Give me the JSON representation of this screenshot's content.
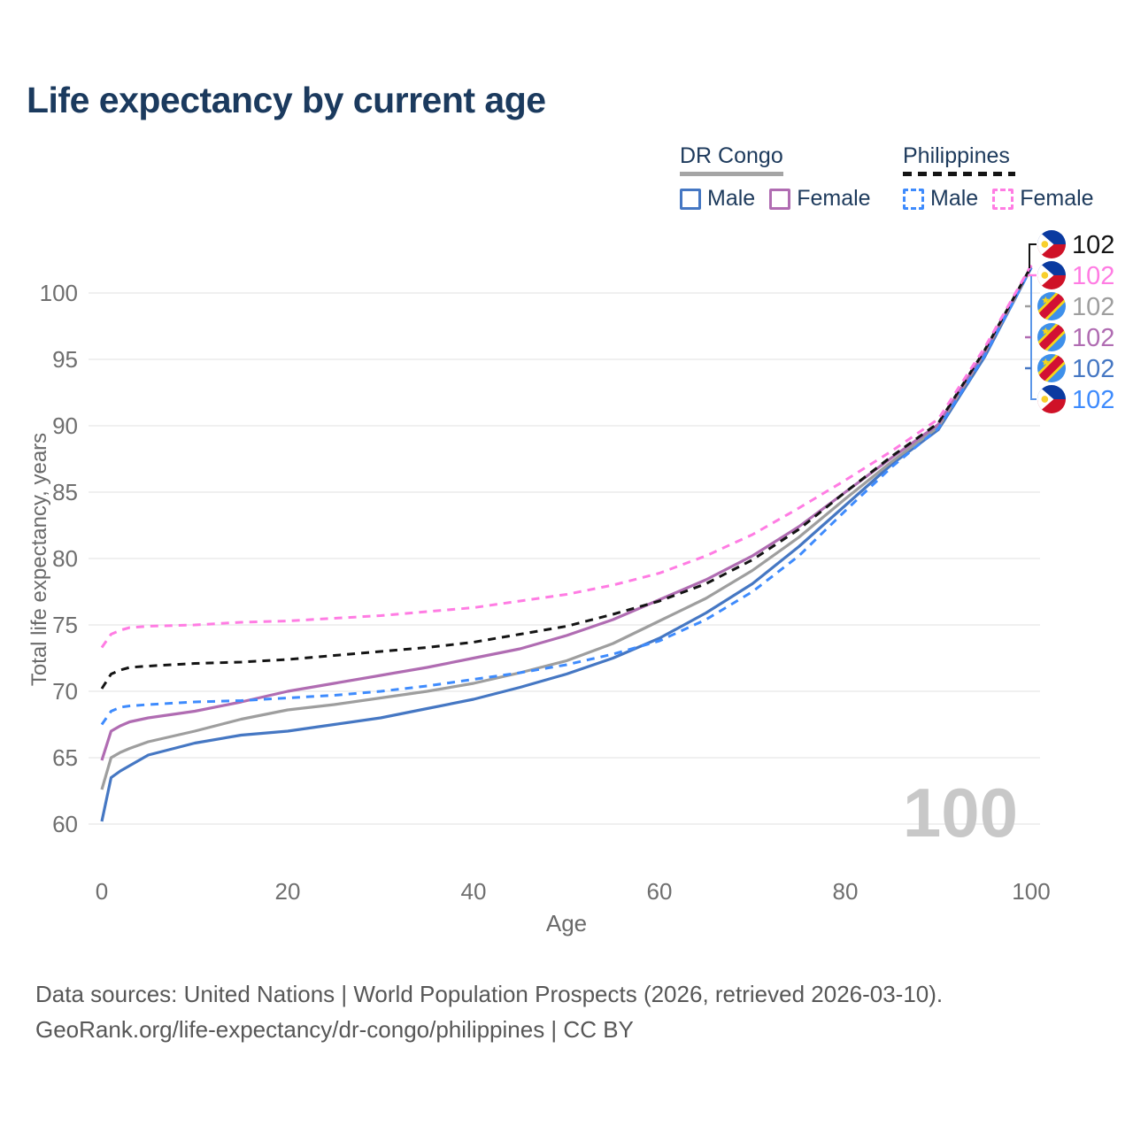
{
  "title": "Life expectancy by current age",
  "legend": {
    "groups": [
      {
        "label": "DR Congo",
        "underline_style": "solid",
        "underline_color": "#a5a5a5",
        "items": [
          {
            "label": "Male",
            "color": "#4577c3",
            "line_style": "solid"
          },
          {
            "label": "Female",
            "color": "#b06cb2",
            "line_style": "solid"
          }
        ]
      },
      {
        "label": "Philippines",
        "underline_style": "dashed",
        "underline_color": "#141414",
        "items": [
          {
            "label": "Male",
            "color": "#3e8bfd",
            "line_style": "dashed"
          },
          {
            "label": "Female",
            "color": "#ff7ce3",
            "line_style": "dashed"
          }
        ]
      }
    ]
  },
  "chart_data": {
    "type": "line",
    "title": "Life expectancy by current age",
    "xlabel": "Age",
    "ylabel": "Total life expectancy, years",
    "xlim": [
      0,
      100
    ],
    "ylim": [
      60,
      102.5
    ],
    "xticks": [
      0,
      20,
      40,
      60,
      80,
      100
    ],
    "yticks": [
      60,
      65,
      70,
      75,
      80,
      85,
      90,
      95,
      100
    ],
    "grid": "horizontal",
    "grid_color": "#e8e8e8",
    "tick_label_color": "#6f6f6f",
    "watermark": {
      "text": "100",
      "color": "#c8c8c8"
    },
    "x": [
      0,
      1,
      2,
      3,
      5,
      10,
      15,
      20,
      25,
      30,
      35,
      40,
      45,
      50,
      55,
      60,
      65,
      70,
      75,
      80,
      85,
      90,
      95,
      100
    ],
    "series": [
      {
        "id": "ph-total",
        "country": "Philippines",
        "sex": "Total",
        "color": "#141414",
        "line_style": "dashed",
        "flag": "ph",
        "end_label": "102",
        "label_row": 0,
        "values": [
          70.2,
          71.3,
          71.6,
          71.8,
          71.9,
          72.1,
          72.2,
          72.4,
          72.7,
          73.0,
          73.3,
          73.7,
          74.3,
          74.9,
          75.8,
          76.8,
          78.1,
          79.9,
          82.2,
          85.0,
          87.7,
          90.2,
          95.7,
          102.0
        ]
      },
      {
        "id": "ph-female",
        "country": "Philippines",
        "sex": "Female",
        "color": "#ff7ce3",
        "line_style": "dashed",
        "flag": "ph",
        "end_label": "102",
        "label_row": 1,
        "values": [
          73.3,
          74.3,
          74.6,
          74.8,
          74.9,
          75.0,
          75.2,
          75.3,
          75.5,
          75.7,
          76.0,
          76.3,
          76.8,
          77.3,
          78.0,
          78.9,
          80.2,
          81.8,
          83.8,
          85.9,
          88.1,
          90.5,
          95.9,
          102.1
        ]
      },
      {
        "id": "drc-total",
        "country": "DR Congo",
        "sex": "Total",
        "color": "#9e9e9e",
        "line_style": "solid",
        "flag": "cd",
        "end_label": "102",
        "label_row": 2,
        "values": [
          62.6,
          65.0,
          65.4,
          65.7,
          66.2,
          67.0,
          67.9,
          68.6,
          69.0,
          69.5,
          70.0,
          70.6,
          71.4,
          72.3,
          73.6,
          75.3,
          77.0,
          79.1,
          81.6,
          84.5,
          87.3,
          89.9,
          95.5,
          101.9
        ]
      },
      {
        "id": "drc-female",
        "country": "DR Congo",
        "sex": "Female",
        "color": "#b06cb2",
        "line_style": "solid",
        "flag": "cd",
        "end_label": "102",
        "label_row": 3,
        "values": [
          64.8,
          67.0,
          67.4,
          67.7,
          68.0,
          68.5,
          69.2,
          70.0,
          70.6,
          71.2,
          71.8,
          72.5,
          73.2,
          74.2,
          75.4,
          76.9,
          78.4,
          80.2,
          82.4,
          85.0,
          87.6,
          90.1,
          95.6,
          102.0
        ]
      },
      {
        "id": "drc-male",
        "country": "DR Congo",
        "sex": "Male",
        "color": "#4577c3",
        "line_style": "solid",
        "flag": "cd",
        "end_label": "102",
        "label_row": 4,
        "values": [
          60.2,
          63.5,
          64.0,
          64.4,
          65.2,
          66.1,
          66.7,
          67.0,
          67.5,
          68.0,
          68.7,
          69.4,
          70.3,
          71.3,
          72.5,
          74.0,
          75.9,
          78.1,
          80.9,
          84.0,
          87.1,
          89.7,
          95.2,
          101.9
        ]
      },
      {
        "id": "ph-male",
        "country": "Philippines",
        "sex": "Male",
        "color": "#3e8bfd",
        "line_style": "dashed",
        "flag": "ph",
        "end_label": "102",
        "label_row": 5,
        "values": [
          67.5,
          68.5,
          68.8,
          68.9,
          69.0,
          69.2,
          69.3,
          69.5,
          69.7,
          70.0,
          70.4,
          70.9,
          71.4,
          72.0,
          72.8,
          73.8,
          75.4,
          77.5,
          80.2,
          83.6,
          86.9,
          89.8,
          95.3,
          101.9
        ]
      }
    ],
    "legend_position": "top-right",
    "flag_colors": {
      "ph_blue": "#0a3aa0",
      "ph_red": "#cf1127",
      "ph_yellow": "#f8cf2c",
      "ph_white": "#ffffff",
      "cd_blue": "#3e90ea",
      "cd_red": "#d21034",
      "cd_yellow": "#f7d618"
    }
  },
  "footer": {
    "line1": "Data sources: United Nations | World Population Prospects (2026, retrieved 2026-03-10).",
    "line2": "GeoRank.org/life-expectancy/dr-congo/philippines | CC BY"
  },
  "colors": {
    "title": "#1b3a5e",
    "legend_text": "#1d3a5c",
    "axis_text": "#6a6a6a",
    "footer_text": "#575757"
  }
}
